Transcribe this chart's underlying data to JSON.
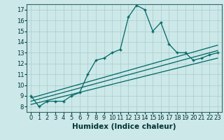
{
  "xlabel": "Humidex (Indice chaleur)",
  "background_color": "#cce8e8",
  "grid_color": "#aacccc",
  "line_color": "#006666",
  "xlim": [
    -0.5,
    23.5
  ],
  "ylim": [
    7.5,
    17.5
  ],
  "xticks": [
    0,
    1,
    2,
    3,
    4,
    5,
    6,
    7,
    8,
    9,
    10,
    11,
    12,
    13,
    14,
    15,
    16,
    17,
    18,
    19,
    20,
    21,
    22,
    23
  ],
  "yticks": [
    8,
    9,
    10,
    11,
    12,
    13,
    14,
    15,
    16,
    17
  ],
  "main_x": [
    0,
    1,
    2,
    3,
    4,
    5,
    6,
    7,
    8,
    9,
    10,
    11,
    12,
    13,
    14,
    15,
    16,
    17,
    18,
    19,
    20,
    21,
    22,
    23
  ],
  "main_y": [
    9.0,
    8.0,
    8.5,
    8.5,
    8.5,
    9.0,
    9.3,
    11.0,
    12.3,
    12.5,
    13.0,
    13.3,
    16.3,
    17.4,
    17.0,
    15.0,
    15.8,
    13.8,
    13.0,
    13.0,
    12.3,
    12.5,
    12.8,
    13.0
  ],
  "line2_x": [
    0,
    23
  ],
  "line2_y": [
    8.5,
    13.2
  ],
  "line3_x": [
    0,
    23
  ],
  "line3_y": [
    8.2,
    12.5
  ],
  "line4_x": [
    0,
    23
  ],
  "line4_y": [
    8.8,
    13.7
  ],
  "tick_fontsize": 6,
  "xlabel_fontsize": 7.5
}
